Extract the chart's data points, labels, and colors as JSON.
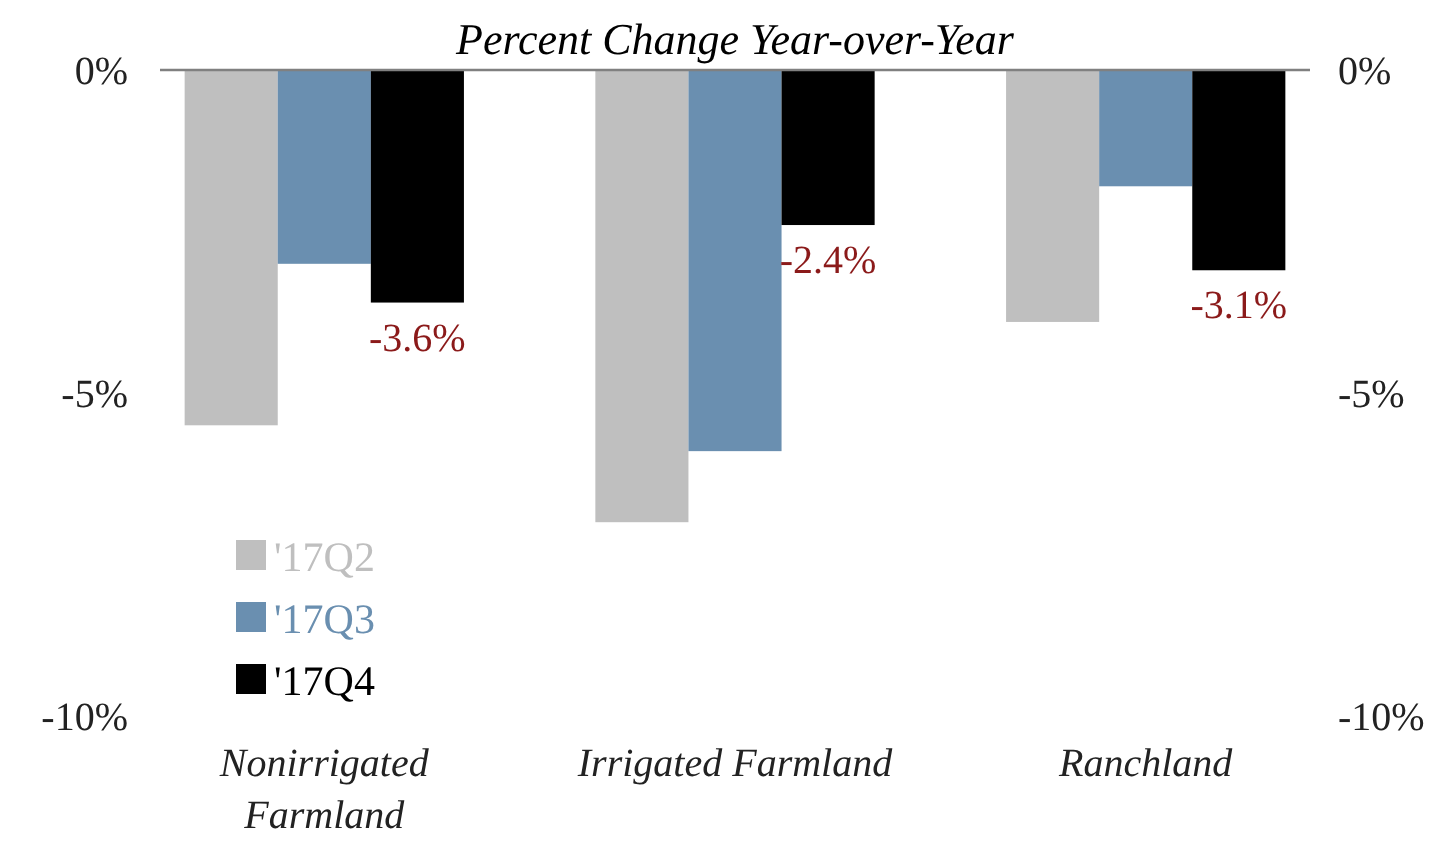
{
  "chart_data": {
    "type": "bar",
    "title": "Percent Change Year-over-Year",
    "categories": [
      "Nonirrigated Farmland",
      "Irrigated Farmland",
      "Ranchland"
    ],
    "series": [
      {
        "name": "'17Q2",
        "color": "#bfbfbf",
        "values": [
          -5.5,
          -7.0,
          -3.9
        ]
      },
      {
        "name": "'17Q3",
        "color": "#6a8fb0",
        "values": [
          -3.0,
          -5.9,
          -1.8
        ]
      },
      {
        "name": "'17Q4",
        "color": "#000000",
        "values": [
          -3.6,
          -2.4,
          -3.1
        ],
        "value_labels": [
          "-3.6%",
          "-2.4%",
          "-3.1%"
        ]
      }
    ],
    "ylim": [
      -10,
      0
    ],
    "yticks": [
      {
        "value": 0,
        "label": "0%"
      },
      {
        "value": -5,
        "label": "-5%"
      },
      {
        "value": -10,
        "label": "-10%"
      }
    ],
    "y2lim": [
      -10,
      0
    ],
    "y2ticks": [
      {
        "value": 0,
        "label": "0%"
      },
      {
        "value": -5,
        "label": "-5%"
      },
      {
        "value": -10,
        "label": "-10%"
      }
    ],
    "legend": "bottom left",
    "grid": false
  }
}
